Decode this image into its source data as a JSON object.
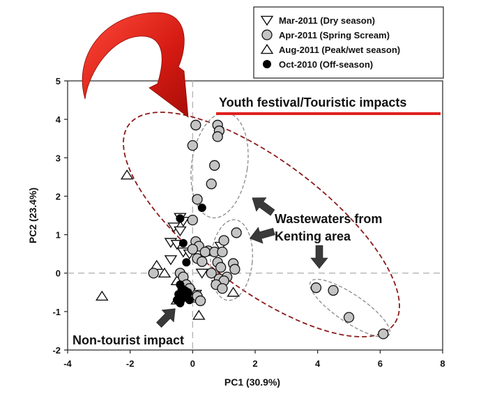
{
  "chart_data": {
    "type": "scatter",
    "title": "",
    "xlabel": "PC1 (30.9%)",
    "ylabel": "PC2 (23.4%)",
    "xlim": [
      -4,
      8
    ],
    "ylim": [
      -2,
      5
    ],
    "xticks": [
      "-4",
      "-2",
      "0",
      "2",
      "4",
      "6",
      "8"
    ],
    "yticks": [
      "5",
      "4",
      "3",
      "2",
      "1",
      "0",
      "-1",
      "-2"
    ],
    "grid": false,
    "reference_lines": "dashed lines at x = 0 and y = 0",
    "legend_position": "top-right",
    "series": [
      {
        "name": "Mar-2011 (Dry season)",
        "marker": "triangle-down-open",
        "points": [
          [
            -0.6,
            1.2
          ],
          [
            -0.4,
            1.45
          ],
          [
            -0.3,
            1.35
          ],
          [
            -0.4,
            1.1
          ],
          [
            -0.7,
            0.8
          ],
          [
            -0.5,
            0.75
          ],
          [
            -0.3,
            0.55
          ],
          [
            -0.1,
            0.5
          ],
          [
            -0.7,
            0.35
          ],
          [
            0.9,
            0.7
          ],
          [
            0.3,
            0.0
          ],
          [
            0.8,
            -0.3
          ],
          [
            -0.3,
            -0.4
          ],
          [
            -0.1,
            -0.5
          ],
          [
            0.1,
            -0.55
          ]
        ]
      },
      {
        "name": "Apr-2011 (Spring Scream)",
        "marker": "circle-grey",
        "points": [
          [
            0.1,
            3.85
          ],
          [
            0.8,
            3.85
          ],
          [
            0.85,
            3.7
          ],
          [
            0.8,
            3.55
          ],
          [
            0.0,
            3.32
          ],
          [
            0.7,
            2.8
          ],
          [
            0.6,
            2.32
          ],
          [
            0.15,
            1.92
          ],
          [
            0.0,
            1.38
          ],
          [
            1.4,
            1.05
          ],
          [
            1.0,
            0.85
          ],
          [
            0.1,
            0.82
          ],
          [
            0.2,
            0.7
          ],
          [
            0.0,
            0.62
          ],
          [
            0.5,
            0.58
          ],
          [
            0.4,
            0.55
          ],
          [
            0.7,
            0.55
          ],
          [
            0.95,
            0.55
          ],
          [
            0.15,
            0.38
          ],
          [
            0.3,
            0.3
          ],
          [
            0.8,
            0.28
          ],
          [
            1.3,
            0.25
          ],
          [
            0.9,
            0.15
          ],
          [
            1.35,
            0.1
          ],
          [
            0.6,
            0.0
          ],
          [
            1.1,
            -0.1
          ],
          [
            0.85,
            -0.15
          ],
          [
            1.0,
            -0.2
          ],
          [
            0.75,
            -0.3
          ],
          [
            0.95,
            -0.4
          ],
          [
            -1.25,
            0.0
          ],
          [
            -0.4,
            0.0
          ],
          [
            -0.3,
            -0.1
          ],
          [
            -0.2,
            -0.3
          ],
          [
            -0.1,
            -0.4
          ],
          [
            0.15,
            -0.6
          ],
          [
            0.25,
            -0.72
          ],
          [
            3.95,
            -0.38
          ],
          [
            4.5,
            -0.45
          ],
          [
            5.0,
            -1.15
          ],
          [
            6.1,
            -1.58
          ]
        ]
      },
      {
        "name": "Aug-2011 (Peak/wet season)",
        "marker": "triangle-up-open",
        "points": [
          [
            -2.1,
            2.55
          ],
          [
            -1.15,
            0.2
          ],
          [
            -0.9,
            0.0
          ],
          [
            -2.9,
            -0.6
          ],
          [
            0.2,
            -1.1
          ],
          [
            1.3,
            -0.5
          ],
          [
            -0.5,
            -0.2
          ],
          [
            -0.3,
            -0.35
          ],
          [
            -0.5,
            -0.7
          ],
          [
            0.0,
            -0.65
          ]
        ]
      },
      {
        "name": "Oct-2010 (Off-season)",
        "marker": "circle-black",
        "points": [
          [
            0.3,
            1.7
          ],
          [
            -0.4,
            1.42
          ],
          [
            -0.3,
            0.78
          ],
          [
            -0.2,
            0.28
          ],
          [
            -0.4,
            -0.3
          ],
          [
            -0.35,
            -0.4
          ],
          [
            -0.25,
            -0.45
          ],
          [
            -0.3,
            -0.52
          ],
          [
            -0.15,
            -0.5
          ],
          [
            -0.45,
            -0.55
          ],
          [
            -0.3,
            -0.6
          ],
          [
            -0.5,
            -0.7
          ],
          [
            -0.2,
            -0.62
          ],
          [
            -0.35,
            -0.68
          ],
          [
            -0.1,
            -0.7
          ],
          [
            -0.4,
            -0.78
          ]
        ]
      }
    ],
    "annotations": {
      "youth": "Youth festival/Touristic impacts",
      "wastewater_line1": "Wastewaters from",
      "wastewater_line2": "Kenting area",
      "nontourist": "Non-tourist impact"
    },
    "colors": {
      "highlight_arrow": "#e02020",
      "underline": "#e02020",
      "big_ellipse": "#8b1a1a",
      "small_ellipse": "#8a8a8a",
      "grey_marker": "#c4c4c4",
      "pointer_arrow": "#3a3a3a"
    }
  }
}
